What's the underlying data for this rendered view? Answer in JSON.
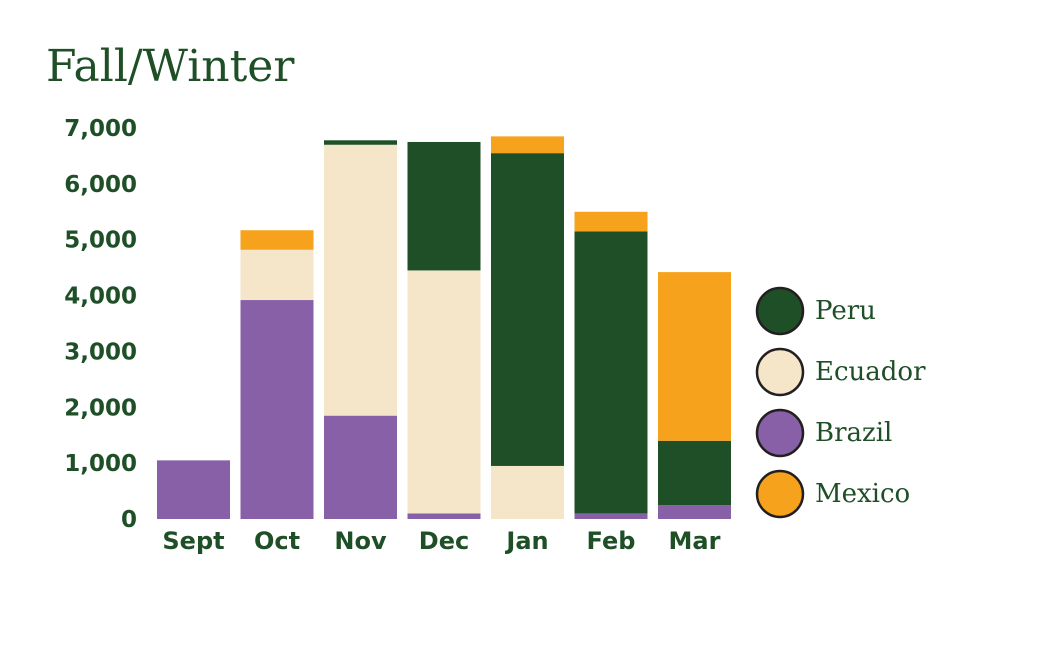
{
  "chart_data": {
    "type": "bar",
    "stacked": true,
    "title": "Fall/Winter",
    "xlabel": "",
    "ylabel": "",
    "categories": [
      "Sept",
      "Oct",
      "Nov",
      "Dec",
      "Jan",
      "Feb",
      "Mar"
    ],
    "y_ticks": [
      "0",
      "1,000",
      "2,000",
      "3,000",
      "4,000",
      "5,000",
      "6,000",
      "7,000"
    ],
    "ylim": [
      0,
      7000
    ],
    "grid": false,
    "legend_position": "right",
    "series": [
      {
        "name": "Peru",
        "color": "#1f4f27",
        "values": [
          0,
          0,
          80,
          2300,
          5600,
          5050,
          1150
        ]
      },
      {
        "name": "Ecuador",
        "color": "#f5e6c9",
        "values": [
          0,
          900,
          4850,
          4350,
          950,
          0,
          0
        ]
      },
      {
        "name": "Brazil",
        "color": "#8860a8",
        "values": [
          1050,
          3920,
          1850,
          100,
          0,
          100,
          250
        ]
      },
      {
        "name": "Mexico",
        "color": "#f6a21c",
        "values": [
          0,
          350,
          0,
          0,
          300,
          350,
          3020
        ]
      }
    ],
    "stack_order": [
      "Brazil",
      "Ecuador",
      "Peru",
      "Mexico"
    ]
  }
}
